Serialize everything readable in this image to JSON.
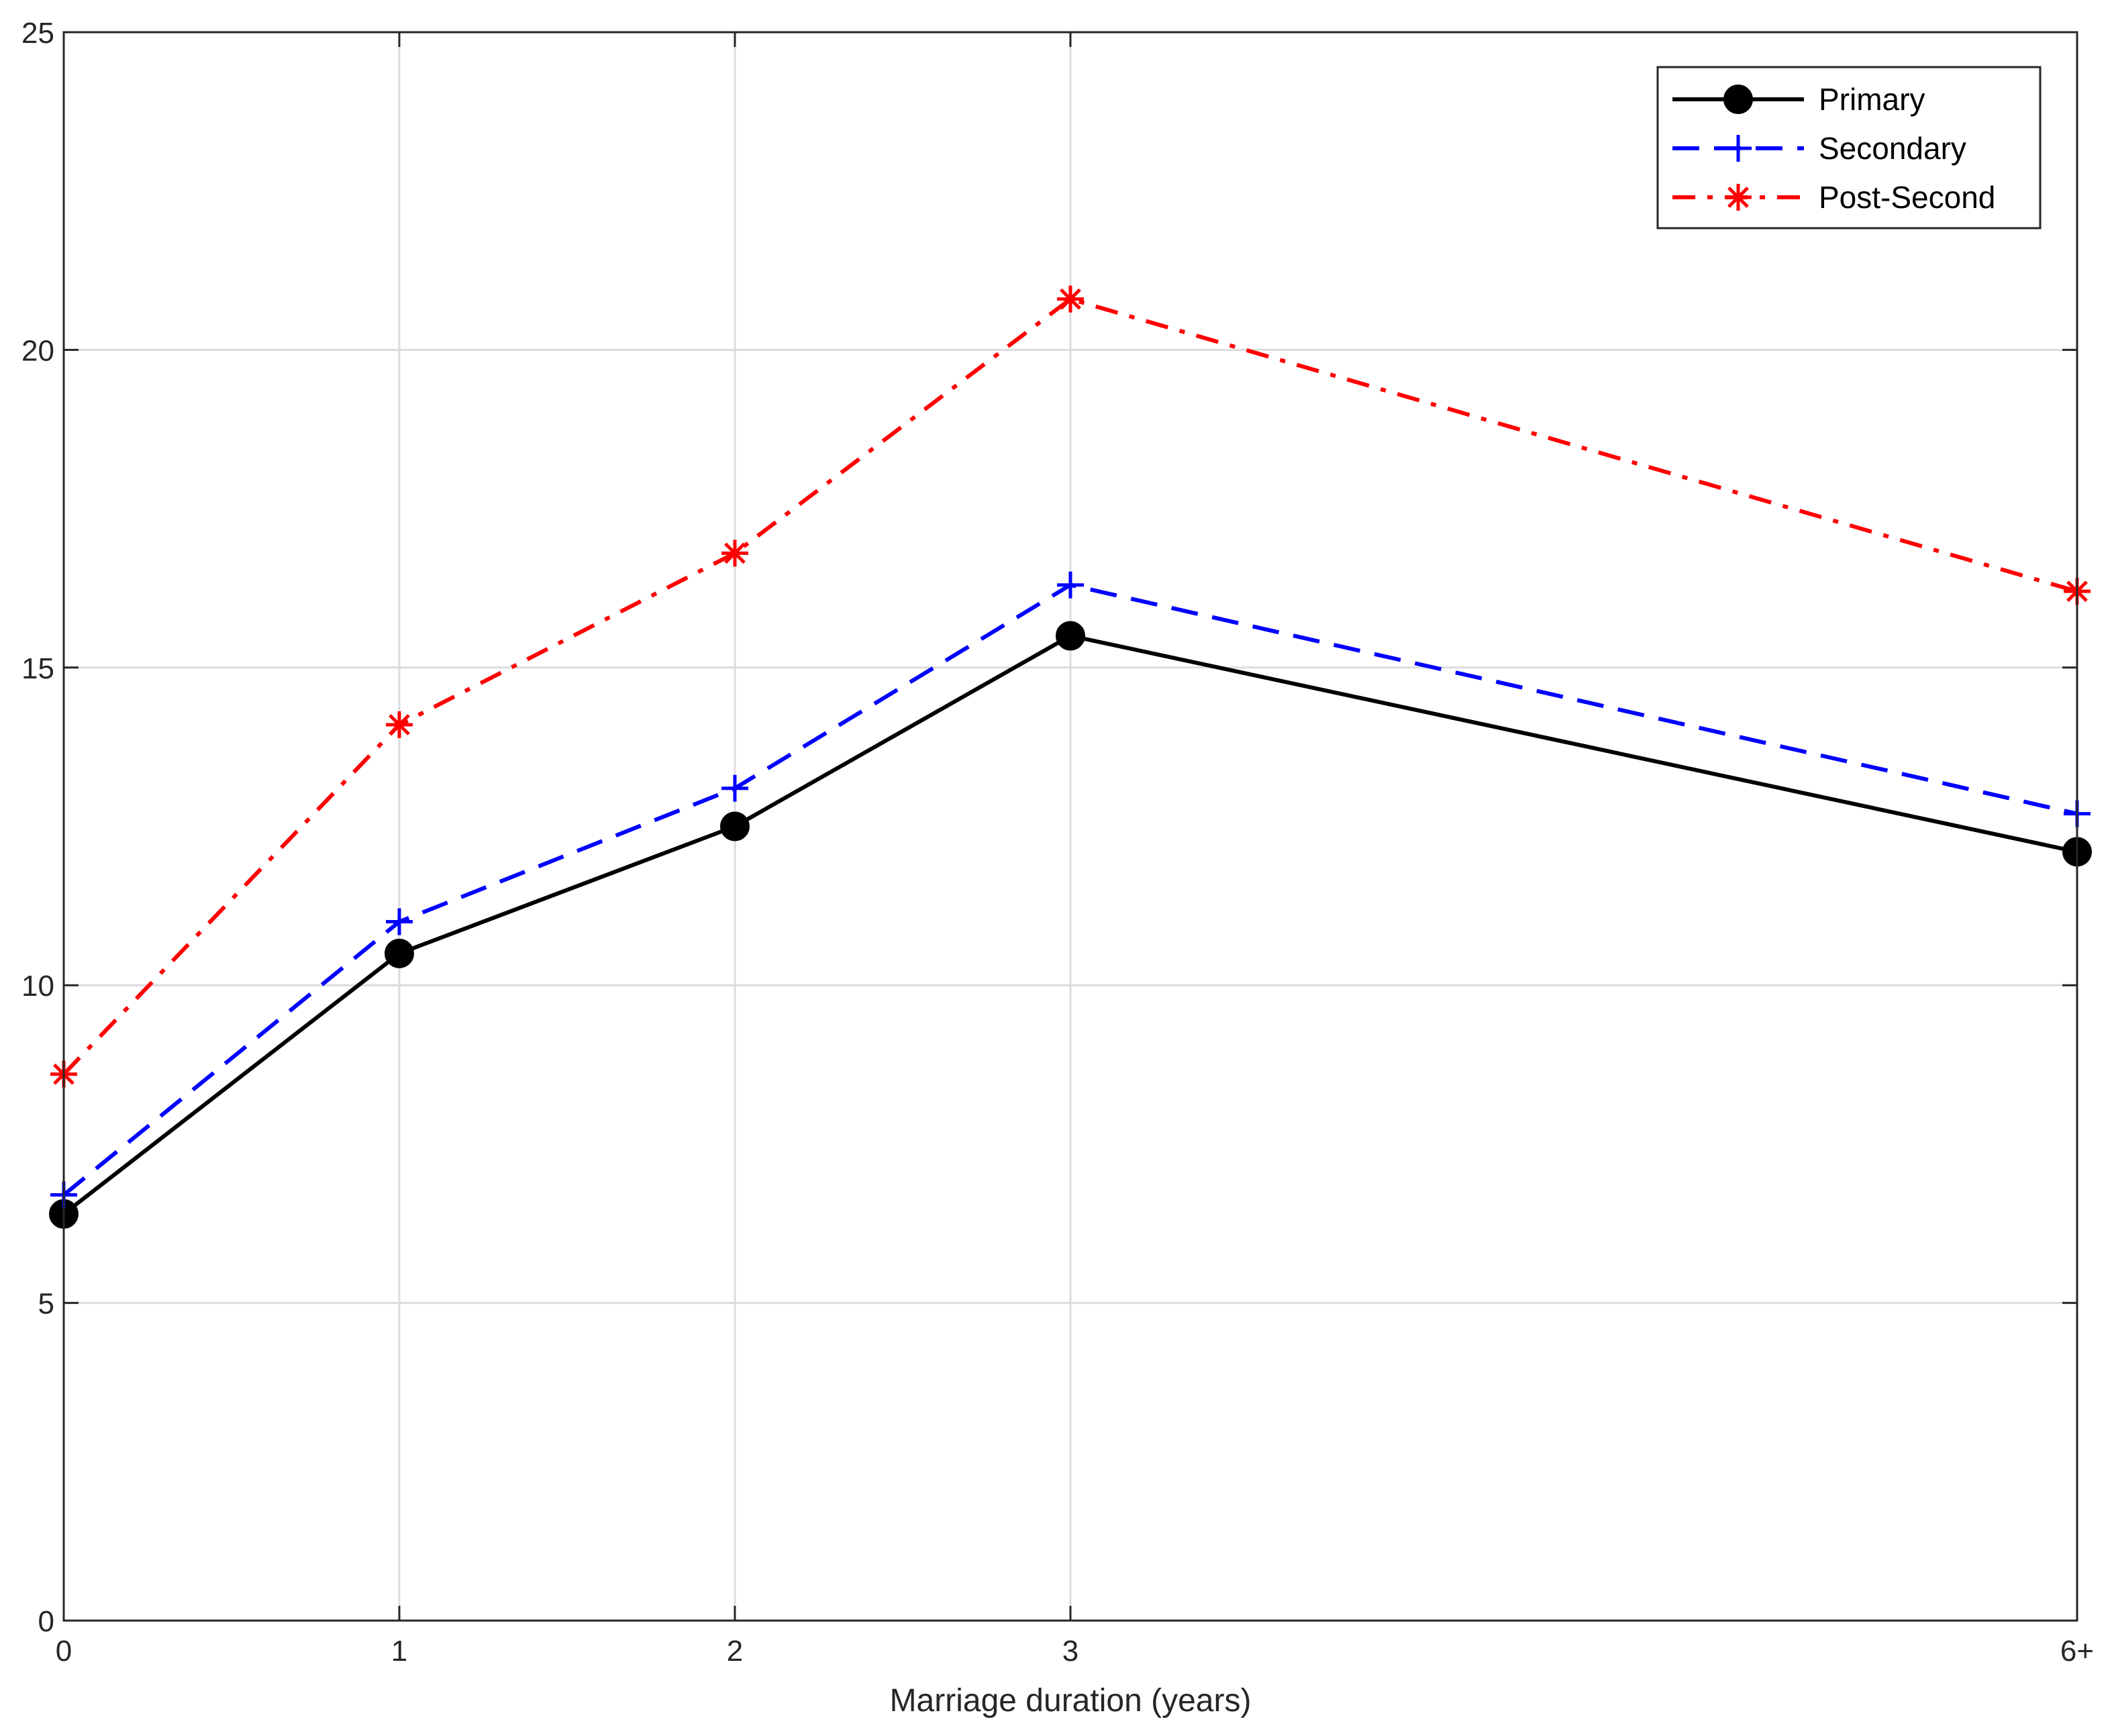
{
  "chart_data": {
    "type": "line",
    "title": "",
    "xlabel": "Marriage duration (years)",
    "ylabel": "",
    "categories": [
      "0",
      "1",
      "2",
      "3",
      "6+"
    ],
    "x": [
      0,
      1,
      2,
      3,
      6
    ],
    "ylim": [
      0,
      25
    ],
    "yticks": [
      0,
      5,
      10,
      15,
      20,
      25
    ],
    "grid": true,
    "legend_position": "top-right",
    "series": [
      {
        "name": "Primary",
        "values": [
          6.4,
          10.5,
          12.5,
          15.5,
          12.1
        ],
        "color": "#000000",
        "marker": "circle",
        "line_style": "solid"
      },
      {
        "name": "Secondary",
        "values": [
          6.7,
          11.0,
          13.1,
          16.3,
          12.7
        ],
        "color": "#0000ff",
        "marker": "plus",
        "line_style": "dashed"
      },
      {
        "name": "Post-Second",
        "values": [
          8.6,
          14.1,
          16.8,
          20.8,
          16.2
        ],
        "color": "#ff0000",
        "marker": "asterisk",
        "line_style": "dash-dot"
      }
    ]
  }
}
